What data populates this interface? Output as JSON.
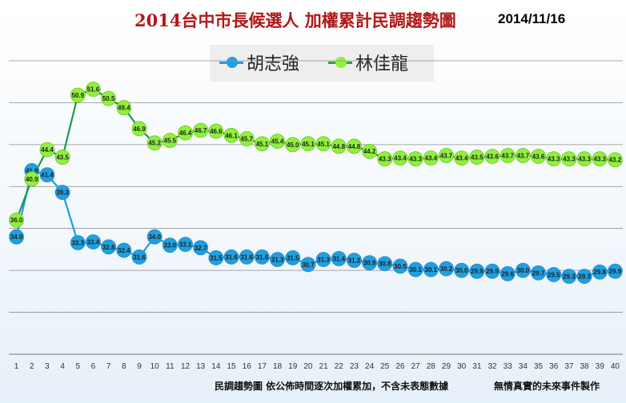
{
  "chart_data": {
    "type": "line",
    "title": "2014台中市長候選人 加權累計民調趨勢圖",
    "date": "2014/11/16",
    "footnote": "民調趨勢圖 依公佈時間逐次加權累加，不含未表態數據",
    "footnote2": "無情真實的未來事件製作",
    "legend_position": "top",
    "grid": true,
    "ylim": [
      20,
      57
    ],
    "x": [
      1,
      2,
      3,
      4,
      5,
      6,
      7,
      8,
      9,
      10,
      11,
      12,
      13,
      14,
      15,
      16,
      17,
      18,
      19,
      20,
      21,
      22,
      23,
      24,
      25,
      26,
      27,
      28,
      29,
      30,
      31,
      32,
      33,
      34,
      35,
      36,
      37,
      38,
      39,
      40
    ],
    "series": [
      {
        "name": "胡志強",
        "color": "#1fa0e0",
        "values": [
          34.0,
          41.9,
          41.4,
          39.3,
          33.3,
          33.4,
          32.8,
          32.4,
          31.6,
          34.0,
          33.0,
          33.1,
          32.7,
          31.5,
          31.6,
          31.6,
          31.6,
          31.3,
          31.5,
          30.7,
          31.3,
          31.4,
          31.2,
          30.9,
          30.8,
          30.5,
          30.1,
          30.1,
          30.2,
          30.0,
          29.9,
          29.9,
          29.6,
          30.0,
          29.7,
          29.5,
          29.3,
          29.3,
          29.8,
          29.9
        ]
      },
      {
        "name": "林佳龍",
        "color": "#8ef23c",
        "values": [
          36.0,
          40.9,
          44.4,
          43.5,
          50.9,
          51.6,
          50.5,
          49.4,
          46.9,
          45.2,
          45.5,
          46.4,
          46.7,
          46.6,
          46.1,
          45.7,
          45.1,
          45.4,
          45.0,
          45.1,
          45.1,
          44.8,
          44.8,
          44.2,
          43.3,
          43.4,
          43.3,
          43.4,
          43.7,
          43.4,
          43.5,
          43.6,
          43.7,
          43.7,
          43.6,
          43.3,
          43.3,
          43.3,
          43.3,
          43.2
        ]
      }
    ]
  }
}
